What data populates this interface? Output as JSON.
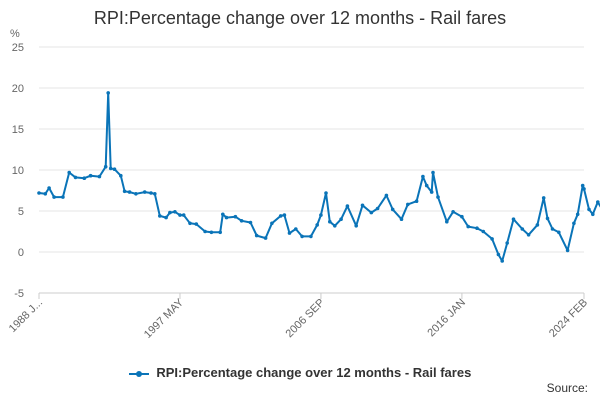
{
  "title": "RPI:Percentage change over 12 months - Rail fares",
  "source_label": "Source:",
  "line_color": "#0a74b8",
  "chart_data": {
    "type": "line",
    "title": "RPI:Percentage change over 12 months - Rail fares",
    "ylabel": "%",
    "xlabel": "",
    "ylim": [
      -5,
      25
    ],
    "yticks": [
      -5,
      0,
      5,
      10,
      15,
      20,
      25
    ],
    "grid": true,
    "legend_position": "bottom",
    "x_range": [
      "1988 JAN",
      "2024 FEB"
    ],
    "xtick_labels": [
      "1988 J...",
      "1997 MAY",
      "2006 SEP",
      "2016 JAN",
      "2024 FEB"
    ],
    "xtick_dates": [
      "1988-01",
      "1997-05",
      "2006-09",
      "2016-01",
      "2024-02"
    ],
    "series": [
      {
        "name": "RPI:Percentage change over 12 months - Rail fares",
        "points": [
          [
            "1988-01",
            7.2
          ],
          [
            "1988-06",
            7.1
          ],
          [
            "1988-09",
            7.8
          ],
          [
            "1989-01",
            6.7
          ],
          [
            "1989-08",
            6.7
          ],
          [
            "1990-01",
            9.7
          ],
          [
            "1990-06",
            9.1
          ],
          [
            "1991-01",
            9.0
          ],
          [
            "1991-06",
            9.3
          ],
          [
            "1992-01",
            9.2
          ],
          [
            "1992-06",
            10.4
          ],
          [
            "1992-08",
            19.4
          ],
          [
            "1992-10",
            10.2
          ],
          [
            "1993-01",
            10.1
          ],
          [
            "1993-06",
            9.3
          ],
          [
            "1993-09",
            7.4
          ],
          [
            "1994-01",
            7.3
          ],
          [
            "1994-06",
            7.1
          ],
          [
            "1995-01",
            7.3
          ],
          [
            "1995-06",
            7.2
          ],
          [
            "1995-09",
            7.1
          ],
          [
            "1996-01",
            4.4
          ],
          [
            "1996-06",
            4.2
          ],
          [
            "1996-09",
            4.8
          ],
          [
            "1997-01",
            4.9
          ],
          [
            "1997-05",
            4.5
          ],
          [
            "1997-08",
            4.5
          ],
          [
            "1998-01",
            3.5
          ],
          [
            "1998-06",
            3.4
          ],
          [
            "1999-01",
            2.5
          ],
          [
            "1999-06",
            2.4
          ],
          [
            "2000-01",
            2.4
          ],
          [
            "2000-03",
            4.6
          ],
          [
            "2000-06",
            4.2
          ],
          [
            "2001-01",
            4.3
          ],
          [
            "2001-06",
            3.8
          ],
          [
            "2002-01",
            3.6
          ],
          [
            "2002-06",
            2.0
          ],
          [
            "2003-01",
            1.7
          ],
          [
            "2003-06",
            3.5
          ],
          [
            "2004-01",
            4.4
          ],
          [
            "2004-04",
            4.5
          ],
          [
            "2004-08",
            2.3
          ],
          [
            "2005-01",
            2.8
          ],
          [
            "2005-06",
            1.9
          ],
          [
            "2006-01",
            1.9
          ],
          [
            "2006-06",
            3.3
          ],
          [
            "2006-09",
            4.5
          ],
          [
            "2007-01",
            7.2
          ],
          [
            "2007-04",
            3.7
          ],
          [
            "2007-08",
            3.2
          ],
          [
            "2008-01",
            4.0
          ],
          [
            "2008-06",
            5.6
          ],
          [
            "2009-01",
            3.2
          ],
          [
            "2009-06",
            5.7
          ],
          [
            "2010-01",
            4.8
          ],
          [
            "2010-06",
            5.3
          ],
          [
            "2011-01",
            6.9
          ],
          [
            "2011-06",
            5.2
          ],
          [
            "2012-01",
            4.0
          ],
          [
            "2012-06",
            5.8
          ],
          [
            "2013-01",
            6.2
          ],
          [
            "2013-06",
            9.2
          ],
          [
            "2013-09",
            8.1
          ],
          [
            "2014-01",
            7.3
          ],
          [
            "2014-02",
            9.7
          ],
          [
            "2014-06",
            6.7
          ],
          [
            "2015-01",
            3.7
          ],
          [
            "2015-06",
            4.9
          ],
          [
            "2016-01",
            4.3
          ],
          [
            "2016-06",
            3.1
          ],
          [
            "2017-01",
            2.9
          ],
          [
            "2017-06",
            2.5
          ],
          [
            "2018-01",
            1.6
          ],
          [
            "2018-06",
            -0.3
          ],
          [
            "2018-09",
            -1.1
          ],
          [
            "2019-01",
            1.1
          ],
          [
            "2019-06",
            4.0
          ],
          [
            "2020-01",
            2.8
          ],
          [
            "2020-06",
            2.1
          ],
          [
            "2021-01",
            3.3
          ],
          [
            "2021-06",
            6.6
          ],
          [
            "2021-09",
            4.1
          ],
          [
            "2022-01",
            2.8
          ],
          [
            "2022-06",
            2.4
          ],
          [
            "2023-01",
            0.2
          ],
          [
            "2023-06",
            3.5
          ],
          [
            "2023-09",
            4.6
          ],
          [
            "2024-01",
            8.1
          ],
          [
            "2024-02",
            7.7
          ],
          [
            "2024-06",
            5.2
          ],
          [
            "2024-09",
            4.6
          ],
          [
            "2025-01",
            6.1
          ],
          [
            "2025-06",
            4.8
          ],
          [
            "2025-09",
            3.6
          ],
          [
            "2026-01",
            4.5
          ]
        ]
      }
    ]
  }
}
